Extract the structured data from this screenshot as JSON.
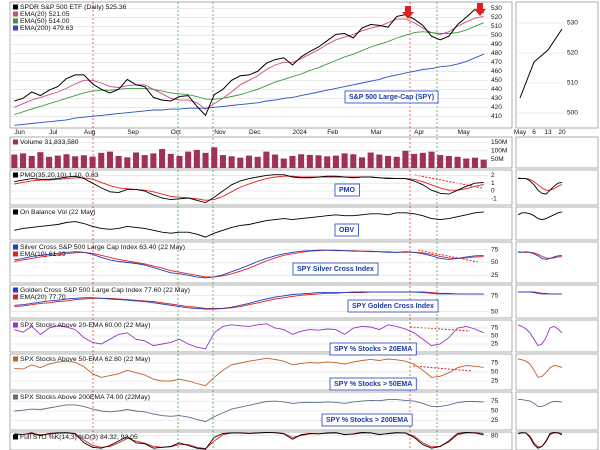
{
  "chart_data": [
    {
      "type": "line",
      "title": "SPDR S&P 500 ETF (Daily) 525.36",
      "annotation": "S&P 500 Large-Cap (SPY)",
      "color": "#000000",
      "categories": [
        "Jun",
        null,
        null,
        null,
        "Jul",
        null,
        null,
        null,
        "Aug",
        null,
        null,
        null,
        null,
        "Sep",
        null,
        null,
        null,
        null,
        "Oct",
        null,
        null,
        null,
        null,
        "Nov",
        null,
        null,
        null,
        "Dec",
        null,
        null,
        null,
        null,
        "2024",
        null,
        null,
        null,
        "Feb",
        null,
        null,
        null,
        null,
        "Mar",
        null,
        null,
        null,
        null,
        "Apr",
        null,
        null,
        null,
        null,
        "May",
        null,
        null,
        null
      ],
      "values": [
        427,
        430,
        437,
        433,
        439,
        443,
        452,
        456,
        456,
        446,
        440,
        436,
        440,
        451,
        445,
        443,
        431,
        428,
        427,
        432,
        433,
        421,
        411,
        434,
        440,
        450,
        455,
        456,
        460,
        469,
        473,
        475,
        467,
        476,
        482,
        487,
        494,
        501,
        502,
        497,
        508,
        512,
        511,
        509,
        521,
        523,
        518,
        511,
        499,
        495,
        499,
        512,
        520,
        529,
        525
      ],
      "series": [
        {
          "name": "EMA(20) 521.05",
          "color": "#d04a8a",
          "values": [
            420,
            424,
            428,
            431,
            434,
            437,
            441,
            446,
            450,
            450,
            447,
            443,
            442,
            444,
            445,
            445,
            440,
            435,
            430,
            428,
            428,
            425,
            418,
            424,
            430,
            437,
            445,
            450,
            455,
            462,
            467,
            470,
            470,
            474,
            479,
            484,
            490,
            495,
            498,
            501,
            505,
            508,
            510,
            514,
            518,
            518,
            514,
            508,
            503,
            501,
            504,
            510,
            515,
            519,
            521
          ]
        },
        {
          "name": "EMA(50) 514.00",
          "color": "#3a9a3a",
          "values": [
            412,
            415,
            418,
            421,
            424,
            427,
            430,
            433,
            436,
            438,
            439,
            439,
            440,
            441,
            441,
            441,
            440,
            438,
            436,
            435,
            434,
            432,
            429,
            429,
            430,
            432,
            434,
            437,
            440,
            444,
            448,
            451,
            454,
            457,
            461,
            464,
            468,
            472,
            476,
            479,
            483,
            487,
            490,
            493,
            497,
            500,
            503,
            504,
            503,
            502,
            502,
            503,
            506,
            510,
            514
          ]
        },
        {
          "name": "EMA(200) 479.63",
          "color": "#2850c8",
          "values": [
            400,
            401,
            402,
            403,
            404,
            405,
            406,
            408,
            409,
            410,
            411,
            412,
            413,
            414,
            415,
            416,
            417,
            417,
            418,
            418,
            419,
            419,
            419,
            420,
            421,
            422,
            423,
            424,
            425,
            427,
            428,
            430,
            431,
            433,
            435,
            437,
            439,
            441,
            443,
            445,
            447,
            449,
            451,
            454,
            456,
            458,
            460,
            462,
            463,
            465,
            466,
            468,
            471,
            475,
            479
          ]
        }
      ],
      "ylim": [
        397,
        537
      ],
      "yticks": [
        530,
        520,
        510,
        500,
        490,
        480,
        470,
        460,
        450,
        440,
        430,
        420,
        410
      ],
      "grid": true
    },
    {
      "type": "bar",
      "title": "Volume 31,833,580",
      "color": "#a0305a",
      "values": [
        78000000,
        85000000,
        70000000,
        92000000,
        65000000,
        72000000,
        80000000,
        68000000,
        74000000,
        66000000,
        88000000,
        95000000,
        70000000,
        62000000,
        90000000,
        75000000,
        85000000,
        110000000,
        82000000,
        70000000,
        95000000,
        105000000,
        88000000,
        120000000,
        75000000,
        68000000,
        60000000,
        72000000,
        65000000,
        95000000,
        78000000,
        55000000,
        70000000,
        80000000,
        76000000,
        74000000,
        68000000,
        72000000,
        85000000,
        80000000,
        62000000,
        90000000,
        78000000,
        70000000,
        65000000,
        100000000,
        82000000,
        88000000,
        95000000,
        75000000,
        70000000,
        65000000,
        55000000,
        60000000,
        48000000
      ],
      "ylim": [
        0,
        180000000
      ],
      "yticks": [
        {
          "value": 150000000,
          "label": "150M"
        },
        {
          "value": 100000000,
          "label": "100M"
        },
        {
          "value": 50000000,
          "label": "50M"
        }
      ],
      "grid": true
    },
    {
      "type": "line",
      "title": "PMO(35,20,10) 1.10, 0.83",
      "annotation": "PMO",
      "color": "#000000",
      "values": [
        1.2,
        1.4,
        1.6,
        1.5,
        1.5,
        1.6,
        1.8,
        1.9,
        1.6,
        1.0,
        0.4,
        -0.1,
        -0.2,
        0.2,
        0.2,
        0.0,
        -0.5,
        -0.9,
        -1.1,
        -1.0,
        -0.9,
        -1.2,
        -1.5,
        -0.8,
        0.0,
        0.8,
        1.3,
        1.6,
        1.8,
        2.0,
        2.1,
        2.1,
        1.8,
        1.7,
        1.7,
        1.8,
        1.9,
        1.9,
        1.8,
        1.7,
        1.8,
        1.8,
        1.7,
        1.6,
        1.6,
        1.6,
        1.3,
        0.8,
        0.1,
        -0.3,
        -0.4,
        0.1,
        0.6,
        1.0,
        1.1
      ],
      "series": [
        {
          "color": "#e02020",
          "values": [
            0.9,
            1.1,
            1.3,
            1.4,
            1.4,
            1.5,
            1.6,
            1.7,
            1.7,
            1.5,
            1.1,
            0.7,
            0.4,
            0.3,
            0.2,
            0.1,
            -0.1,
            -0.4,
            -0.7,
            -0.8,
            -0.9,
            -1.0,
            -1.2,
            -1.1,
            -0.7,
            -0.1,
            0.5,
            0.9,
            1.3,
            1.6,
            1.8,
            1.9,
            1.9,
            1.8,
            1.8,
            1.8,
            1.8,
            1.8,
            1.8,
            1.8,
            1.8,
            1.8,
            1.7,
            1.7,
            1.6,
            1.6,
            1.5,
            1.2,
            0.8,
            0.4,
            0.1,
            0.1,
            0.3,
            0.6,
            0.83
          ]
        }
      ],
      "ylim": [
        -1.8,
        2.7
      ],
      "yticks": [
        2,
        1,
        0,
        -1
      ],
      "grid": true
    },
    {
      "type": "line",
      "title": "On Balance Vol (22 May)",
      "annotation": "OBV",
      "color": "#000000",
      "values": [
        10,
        12,
        13,
        14,
        15,
        16,
        18,
        19,
        17,
        14,
        12,
        11,
        12,
        14,
        13,
        12,
        10,
        8,
        7,
        8,
        8,
        6,
        3,
        7,
        10,
        13,
        15,
        16,
        18,
        20,
        21,
        22,
        21,
        22,
        23,
        24,
        25,
        26,
        25,
        25,
        26,
        27,
        27,
        26,
        28,
        28,
        27,
        25,
        22,
        21,
        22,
        24,
        26,
        28,
        29
      ],
      "ylim": [
        0,
        34
      ],
      "grid": false
    },
    {
      "type": "line",
      "title": "Silver Cross S&P 500 Large Cap Index 63.40 (22 May)",
      "annotation": "SPY Silver Cross Index",
      "color": "#2040c0",
      "values": [
        55,
        58,
        62,
        64,
        66,
        68,
        70,
        71,
        70,
        66,
        60,
        55,
        52,
        50,
        48,
        45,
        40,
        35,
        30,
        28,
        25,
        22,
        20,
        22,
        26,
        32,
        38,
        45,
        52,
        58,
        63,
        67,
        70,
        72,
        73,
        74,
        74,
        73,
        73,
        72,
        72,
        71,
        71,
        70,
        70,
        71,
        70,
        67,
        63,
        58,
        56,
        58,
        61,
        63,
        63.4
      ],
      "series": [
        {
          "name": "EMA(10) 61.29",
          "color": "#e02020",
          "values": [
            52,
            55,
            58,
            61,
            63,
            65,
            67,
            69,
            70,
            68,
            64,
            60,
            56,
            53,
            50,
            47,
            43,
            39,
            34,
            31,
            28,
            25,
            22,
            22,
            24,
            28,
            33,
            39,
            46,
            53,
            59,
            64,
            67,
            70,
            72,
            73,
            74,
            74,
            73,
            73,
            72,
            72,
            71,
            71,
            70,
            70,
            70,
            69,
            66,
            62,
            59,
            58,
            59,
            61,
            61.29
          ]
        }
      ],
      "ylim": [
        10,
        90
      ],
      "yticks": [
        75,
        50,
        25
      ],
      "grid": true
    },
    {
      "type": "line",
      "title": "Golden Cross S&P 500 Large Cap Index 77.60 (22 May)",
      "annotation": "SPY Golden Cross Index",
      "color": "#2040c0",
      "values": [
        60,
        61,
        63,
        65,
        67,
        68,
        70,
        71,
        72,
        72,
        71,
        70,
        69,
        68,
        67,
        66,
        64,
        62,
        60,
        58,
        56,
        55,
        54,
        54,
        55,
        57,
        60,
        63,
        67,
        70,
        73,
        75,
        77,
        78,
        79,
        80,
        80,
        80,
        80,
        81,
        81,
        81,
        81,
        81,
        81,
        81,
        81,
        80,
        79,
        78,
        78,
        78,
        78,
        77.6,
        77.6
      ],
      "series": [
        {
          "name": "EMA(20) 77.70",
          "color": "#e02020",
          "values": [
            58,
            59,
            61,
            63,
            64,
            66,
            67,
            69,
            70,
            71,
            71,
            71,
            70,
            69,
            68,
            67,
            66,
            64,
            62,
            60,
            58,
            57,
            55,
            55,
            55,
            56,
            58,
            61,
            64,
            67,
            70,
            72,
            74,
            76,
            77,
            78,
            79,
            79,
            80,
            80,
            80,
            81,
            81,
            81,
            81,
            81,
            81,
            81,
            80,
            79,
            79,
            78,
            78,
            78,
            77.7
          ]
        }
      ],
      "ylim": [
        40,
        92
      ],
      "yticks": [
        75,
        50
      ],
      "grid": true
    },
    {
      "type": "line",
      "title": "SPX Stocks Above 20-EMA 60.00 (22 May)",
      "annotation": "SPY % Stocks > 20EMA",
      "color": "#9932cc",
      "values": [
        70,
        62,
        80,
        55,
        75,
        82,
        78,
        70,
        45,
        30,
        25,
        40,
        55,
        60,
        40,
        35,
        20,
        25,
        30,
        40,
        25,
        15,
        10,
        60,
        80,
        85,
        82,
        80,
        85,
        88,
        75,
        70,
        55,
        65,
        70,
        68,
        72,
        70,
        55,
        75,
        80,
        78,
        70,
        85,
        80,
        72,
        60,
        40,
        20,
        25,
        45,
        75,
        80,
        72,
        60
      ],
      "ylim": [
        0,
        100
      ],
      "yticks": [
        75,
        50,
        25
      ],
      "grid": true
    },
    {
      "type": "line",
      "title": "SPX Stocks Above 50-EMA 62.80 (22 May)",
      "annotation": "SPY % Stocks > 50EMA",
      "color": "#c0602c",
      "values": [
        60,
        58,
        70,
        62,
        72,
        78,
        80,
        77,
        65,
        45,
        35,
        40,
        45,
        55,
        48,
        42,
        30,
        25,
        25,
        30,
        25,
        18,
        12,
        35,
        55,
        70,
        75,
        80,
        84,
        88,
        85,
        80,
        70,
        74,
        76,
        75,
        78,
        76,
        72,
        78,
        82,
        85,
        82,
        86,
        84,
        80,
        72,
        55,
        35,
        38,
        48,
        62,
        68,
        66,
        62.8
      ],
      "ylim": [
        0,
        100
      ],
      "yticks": [
        75,
        50,
        25
      ],
      "grid": true
    },
    {
      "type": "line",
      "title": "SPX Stocks Above 200EMA 74.00 (22May)",
      "annotation": "SPY % Stocks > 200EMA",
      "color": "#5a6e8c",
      "values": [
        50,
        52,
        55,
        54,
        58,
        62,
        66,
        66,
        62,
        55,
        50,
        48,
        50,
        54,
        50,
        48,
        42,
        38,
        36,
        38,
        34,
        28,
        22,
        35,
        45,
        55,
        60,
        65,
        70,
        75,
        76,
        74,
        70,
        72,
        73,
        72,
        74,
        73,
        70,
        74,
        76,
        78,
        77,
        80,
        80,
        78,
        76,
        70,
        62,
        62,
        66,
        72,
        75,
        75,
        74
      ],
      "ylim": [
        0,
        100
      ],
      "yticks": [
        75,
        50,
        25
      ],
      "grid": true
    },
    {
      "type": "line",
      "title": "Full STO %K(14,3) %D(3) 84.32, 92.05",
      "color": "#000000",
      "values": [
        90,
        85,
        95,
        80,
        92,
        95,
        96,
        90,
        40,
        15,
        10,
        25,
        50,
        75,
        40,
        35,
        10,
        15,
        20,
        40,
        25,
        10,
        5,
        70,
        92,
        95,
        95,
        92,
        95,
        98,
        96,
        90,
        60,
        85,
        92,
        90,
        95,
        96,
        85,
        90,
        97,
        95,
        85,
        92,
        96,
        94,
        70,
        30,
        10,
        20,
        50,
        92,
        97,
        95,
        84.32
      ],
      "series": [
        {
          "color": "#e02020",
          "values": [
            88,
            87,
            90,
            85,
            88,
            93,
            95,
            92,
            55,
            25,
            15,
            20,
            40,
            65,
            50,
            38,
            20,
            15,
            18,
            30,
            30,
            15,
            8,
            50,
            85,
            94,
            95,
            93,
            94,
            96,
            96,
            92,
            70,
            80,
            90,
            90,
            93,
            95,
            88,
            88,
            95,
            95,
            88,
            90,
            95,
            95,
            78,
            40,
            18,
            20,
            45,
            85,
            95,
            96,
            92.05
          ]
        }
      ],
      "ylim": [
        0,
        100
      ],
      "yticks": [
        80
      ],
      "grid": true
    },
    {
      "type": "line",
      "color": "#000000",
      "categories": [
        "May",
        "6",
        "13",
        "20"
      ],
      "values": [
        505,
        517,
        521,
        528
      ],
      "ylim": [
        495,
        537
      ],
      "yticks": [
        530,
        520,
        510,
        500
      ],
      "grid": true
    }
  ]
}
